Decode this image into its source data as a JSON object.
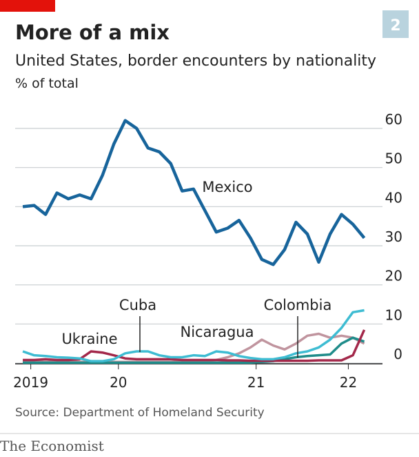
{
  "chart_data": {
    "type": "line",
    "title": "More of a mix",
    "badge": "2",
    "subtitle": "United States, border encounters by nationality",
    "unit_label": "% of total",
    "source": "Source: Department of Homeland Security",
    "brand": "The Economist",
    "x": [
      0,
      1,
      2,
      3,
      4,
      5,
      6,
      7,
      8,
      9,
      10,
      11,
      12,
      13,
      14,
      15,
      16,
      17,
      18,
      19,
      20,
      21,
      22,
      23,
      24,
      25,
      26,
      27,
      28,
      29,
      30
    ],
    "xlim": [
      -0.67,
      31.6
    ],
    "xticks": [
      {
        "value": 0.7,
        "label": "2019"
      },
      {
        "value": 8.4,
        "label": "20"
      },
      {
        "value": 20.5,
        "label": "21"
      },
      {
        "value": 28.6,
        "label": "22"
      }
    ],
    "ylim": [
      0,
      60
    ],
    "yticks": [
      0,
      10,
      20,
      30,
      40,
      50,
      60
    ],
    "grid": true,
    "series": [
      {
        "name": "Nicaragua",
        "color": "#c0949e",
        "values": [
          0.3,
          0.3,
          0.3,
          0.3,
          0.3,
          0.3,
          0.3,
          0.3,
          0.3,
          0.3,
          0.3,
          0.3,
          0.3,
          0.3,
          0.3,
          0.4,
          0.5,
          0.8,
          1.5,
          2.5,
          4,
          6,
          4.5,
          3.5,
          5,
          7,
          7.5,
          6.5,
          7,
          6.5,
          5
        ]
      },
      {
        "name": "Colombia",
        "color": "#1f8c8a",
        "values": [
          0.1,
          0.1,
          0.1,
          0.1,
          0.1,
          0.1,
          0.1,
          0.1,
          0.1,
          0.1,
          0.1,
          0.1,
          0.1,
          0.1,
          0.1,
          0.1,
          0.1,
          0.1,
          0.1,
          0.1,
          0.1,
          0.3,
          0.5,
          1,
          1.5,
          1.8,
          2,
          2.2,
          5,
          6.5,
          5.5
        ]
      },
      {
        "name": "Ukraine",
        "color": "#a3284a",
        "values": [
          0.8,
          0.8,
          1,
          0.8,
          0.8,
          1,
          3,
          2.7,
          2,
          1.2,
          1,
          1,
          1,
          1,
          0.8,
          0.8,
          0.8,
          0.8,
          0.7,
          0.7,
          0.6,
          0.6,
          0.6,
          0.6,
          0.6,
          0.6,
          0.7,
          0.7,
          0.7,
          2,
          8.5
        ]
      },
      {
        "name": "Cuba",
        "color": "#3ebcd2",
        "values": [
          3,
          2,
          1.8,
          1.5,
          1.4,
          1.2,
          0.5,
          0.5,
          1,
          2.5,
          3,
          3,
          2,
          1.5,
          1.5,
          2,
          1.8,
          3,
          2.7,
          1.8,
          1.3,
          1,
          1,
          1.5,
          2.5,
          3,
          4,
          6,
          9,
          13,
          13.5
        ]
      },
      {
        "name": "Mexico",
        "color": "#17649b",
        "values": [
          40,
          40.3,
          38,
          43.5,
          42,
          43,
          42,
          48,
          56,
          62,
          60,
          55,
          54,
          51,
          44,
          44.5,
          39,
          33.5,
          34.5,
          36.5,
          32,
          26.5,
          25.2,
          29,
          36,
          33,
          25.8,
          33,
          38,
          35.5,
          32
        ]
      }
    ]
  }
}
